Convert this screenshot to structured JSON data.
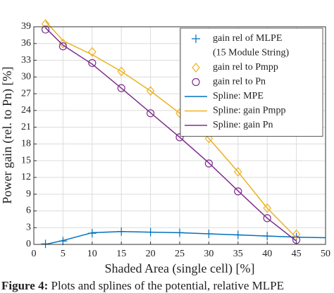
{
  "chart_data": {
    "type": "line",
    "xlabel": "Shaded Area (single cell) [%]",
    "ylabel": "Power gain (rel. to Pn) [%]",
    "xlim": [
      0,
      50
    ],
    "xticks": [
      0,
      5,
      10,
      15,
      20,
      25,
      30,
      35,
      40,
      45,
      50
    ],
    "ylim": [
      0,
      39
    ],
    "yticks": [
      0,
      3,
      6,
      9,
      12,
      15,
      18,
      21,
      24,
      27,
      30,
      33,
      36,
      39
    ],
    "grid": true,
    "legend": "upper right",
    "series": [
      {
        "name": [
          "gain rel of MLPE",
          "(15 Module String)"
        ],
        "marker": "plus",
        "color": "#0072bd",
        "x": [
          2,
          5,
          10,
          15,
          20,
          25,
          30,
          35,
          40,
          45
        ],
        "values": [
          0.1,
          0.6,
          2.0,
          2.3,
          2.2,
          2.1,
          1.9,
          1.7,
          1.5,
          1.3
        ]
      },
      {
        "name": [
          "gain rel to Pmpp"
        ],
        "marker": "diamond",
        "color": "#edb120",
        "x": [
          2,
          5,
          10,
          15,
          20,
          25,
          30,
          35,
          40,
          45
        ],
        "values": [
          39.5,
          36.0,
          34.5,
          31.0,
          27.5,
          23.5,
          19.0,
          13.0,
          6.5,
          1.8
        ]
      },
      {
        "name": [
          "gain rel to Pn"
        ],
        "marker": "circle",
        "color": "#7e2f8e",
        "x": [
          2,
          5,
          10,
          15,
          20,
          25,
          30,
          35,
          40,
          45
        ],
        "values": [
          38.5,
          35.5,
          32.5,
          28.0,
          23.5,
          19.2,
          14.5,
          9.5,
          4.7,
          0.8
        ]
      },
      {
        "name": [
          "Spline: MPE"
        ],
        "marker": "none",
        "color": "#0072bd",
        "x": [
          2,
          5,
          10,
          15,
          20,
          25,
          30,
          35,
          40,
          45,
          50
        ],
        "values": [
          0.0,
          0.7,
          2.1,
          2.3,
          2.2,
          2.1,
          1.9,
          1.7,
          1.5,
          1.3,
          1.2
        ]
      },
      {
        "name": [
          "Spline: gain Pmpp"
        ],
        "marker": "none",
        "color": "#edb120",
        "x": [
          2,
          5,
          10,
          15,
          20,
          25,
          30,
          35,
          40,
          45
        ],
        "values": [
          40.0,
          36.5,
          34.0,
          31.0,
          27.5,
          23.5,
          19.0,
          13.0,
          6.5,
          1.2
        ]
      },
      {
        "name": [
          "Spline: gain Pn"
        ],
        "marker": "none",
        "color": "#7e2f8e",
        "x": [
          2,
          5,
          10,
          15,
          20,
          25,
          30,
          35,
          40,
          45
        ],
        "values": [
          38.8,
          35.7,
          32.3,
          28.0,
          23.6,
          19.2,
          14.6,
          9.6,
          4.7,
          0.6
        ]
      }
    ]
  },
  "caption": {
    "label": "Figure 4:",
    "text": "Plots and splines of the potential, relative MLPE"
  }
}
